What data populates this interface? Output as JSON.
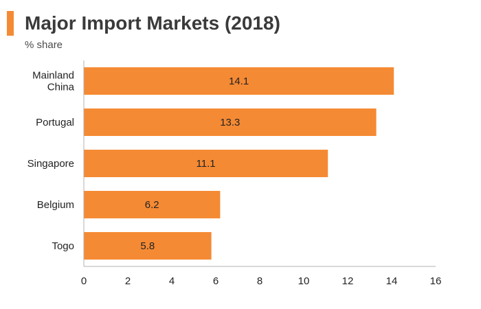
{
  "header": {
    "title": "Major Import Markets (2018)",
    "subtitle": "% share"
  },
  "colors": {
    "accent": "#f58a34",
    "bar": "#f58a34",
    "axis": "#b0b0b0"
  },
  "chart_data": {
    "type": "bar",
    "orientation": "horizontal",
    "title": "Major Import Markets (2018)",
    "subtitle": "% share",
    "categories": [
      [
        "Mainland",
        "China"
      ],
      [
        "Portugal"
      ],
      [
        "Singapore"
      ],
      [
        "Belgium"
      ],
      [
        "Togo"
      ]
    ],
    "values": [
      14.1,
      13.3,
      11.1,
      6.2,
      5.8
    ],
    "value_labels": [
      "14.1",
      "13.3",
      "11.1",
      "6.2",
      "5.8"
    ],
    "xlim": [
      0,
      16
    ],
    "xticks": [
      0,
      2,
      4,
      6,
      8,
      10,
      12,
      14,
      16
    ],
    "grid": false,
    "legend": "none"
  }
}
